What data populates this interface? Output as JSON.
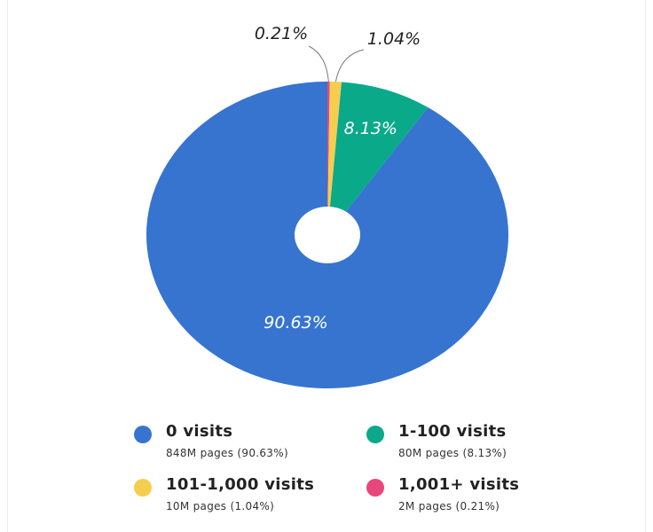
{
  "chart_data": {
    "type": "pie",
    "donut": true,
    "categories": [
      "0 visits",
      "1-100 visits",
      "101-1,000 visits",
      "1,001+ visits"
    ],
    "values": [
      90.63,
      8.13,
      1.04,
      0.21
    ],
    "slice_labels": [
      "90.63%",
      "8.13%",
      "1.04%",
      "0.21%"
    ],
    "colors": [
      "#3674d0",
      "#0aa98a",
      "#f5cd4f",
      "#e8467c"
    ],
    "legend_subtitles": [
      "848M pages (90.63%)",
      "80M pages (8.13%)",
      "10M pages (1.04%)",
      "2M pages (0.21%)"
    ],
    "legend_placement": "bottom",
    "title": ""
  }
}
